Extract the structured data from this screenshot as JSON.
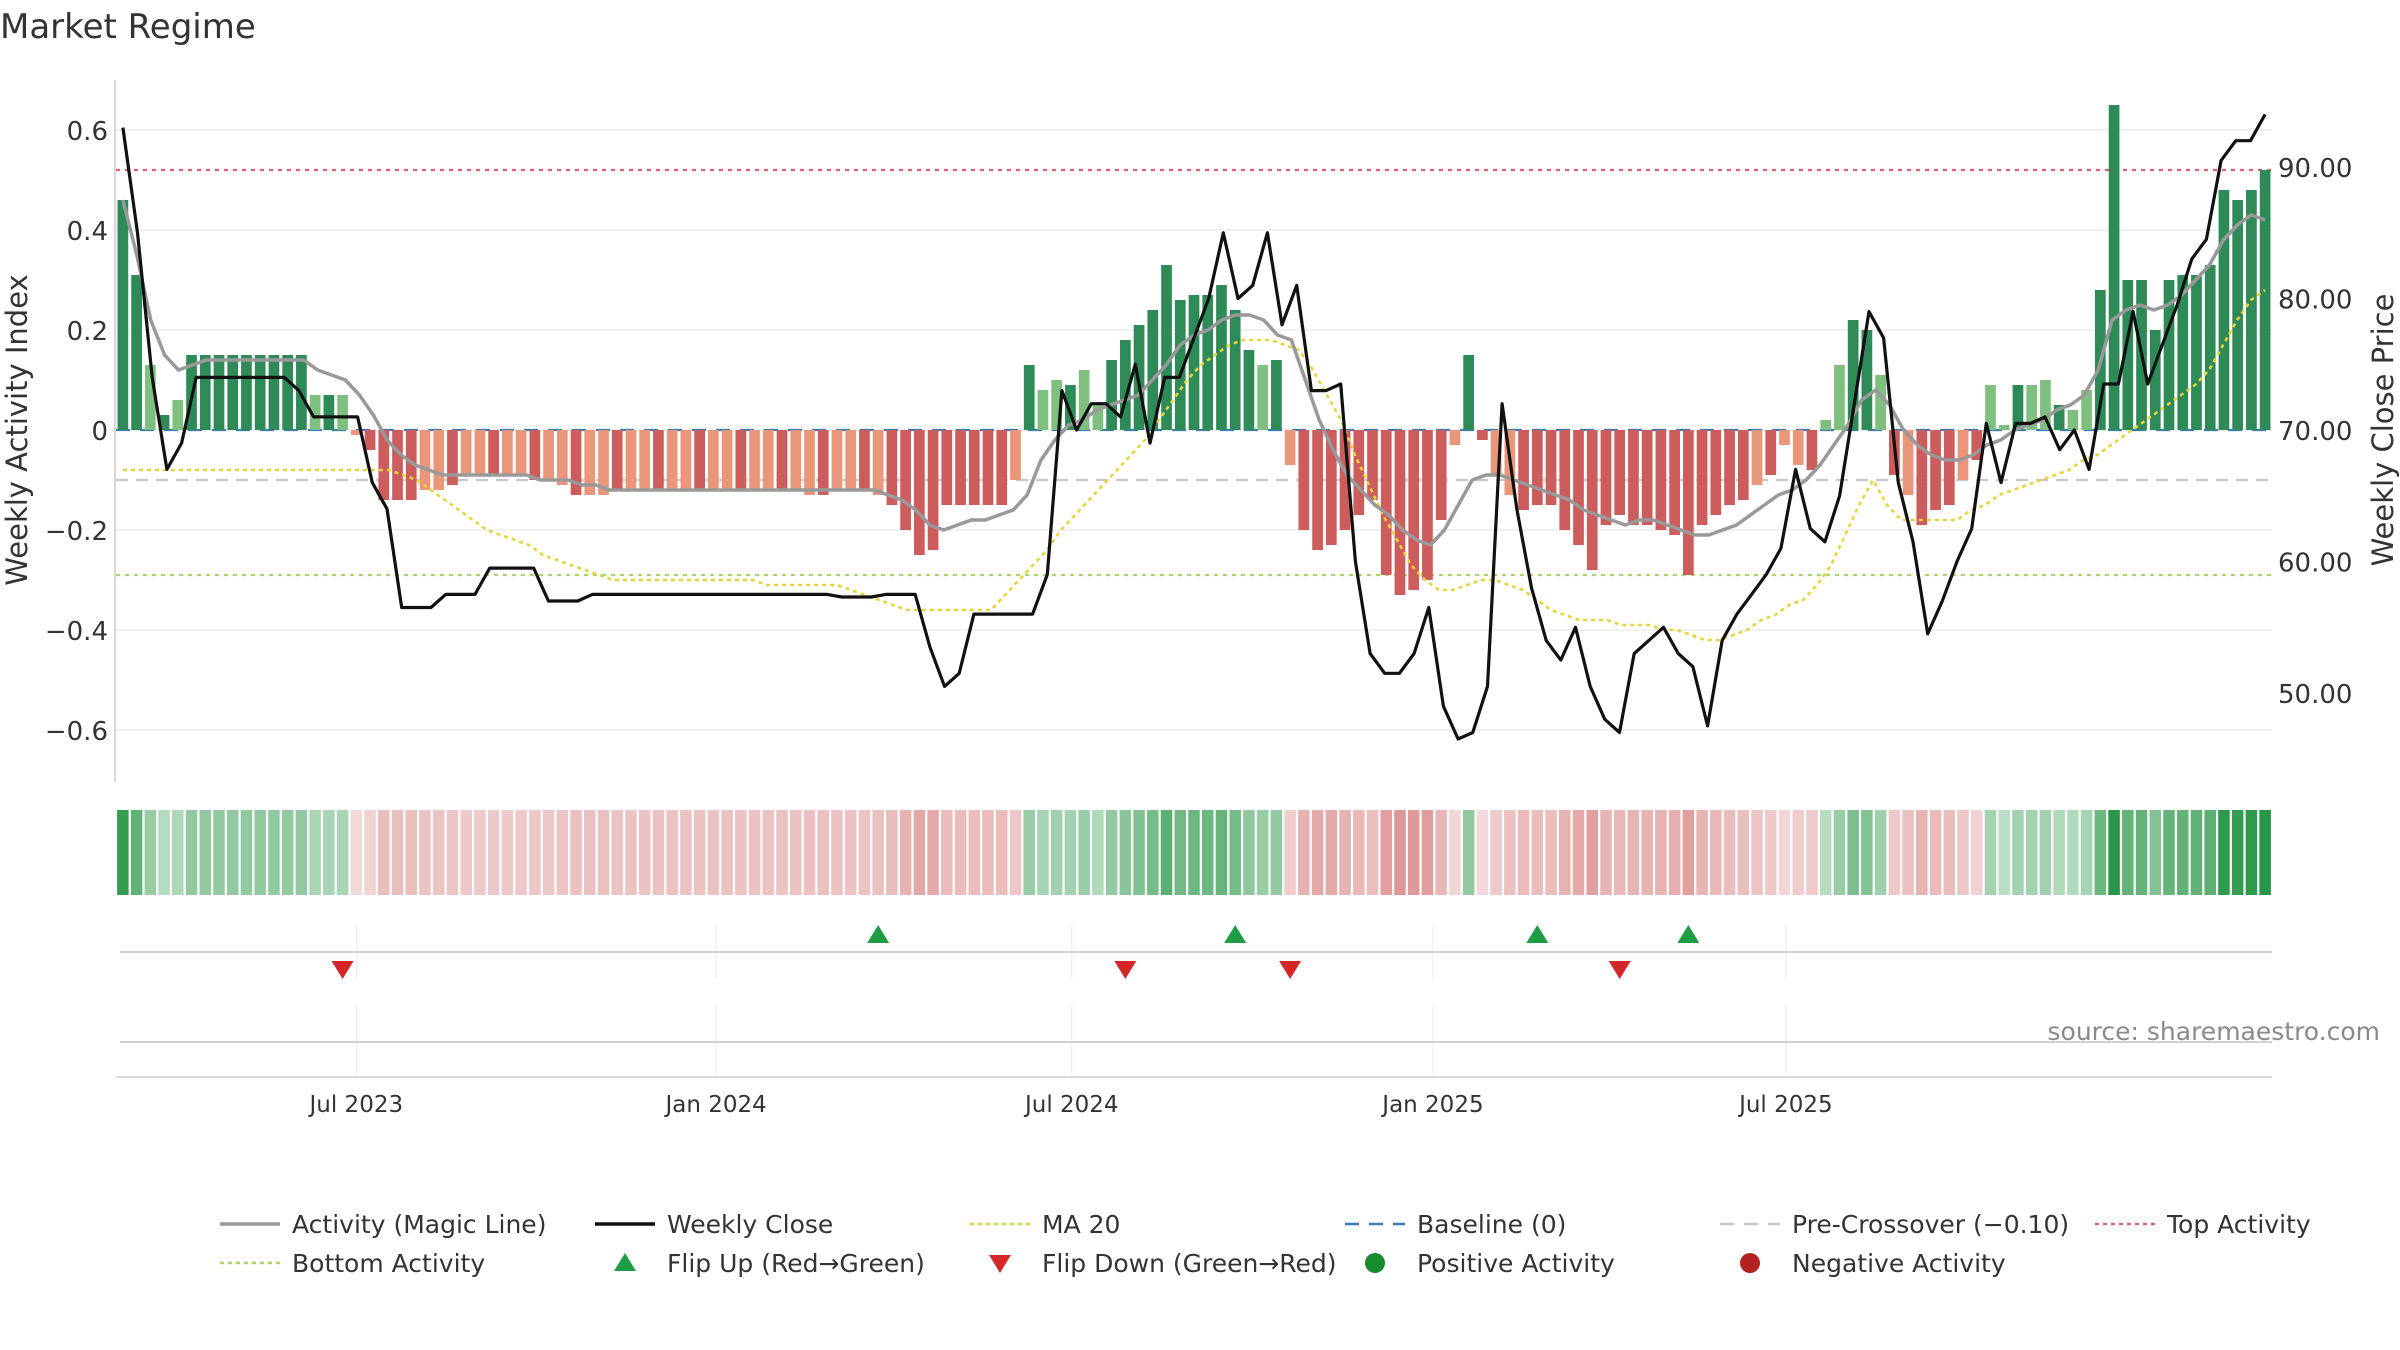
{
  "chart_data": {
    "type": "bar",
    "title": "Market Regime",
    "ylabel_left": "Weekly Activity Index",
    "ylabel_right": "Weekly Close Price",
    "source": "source: sharemaestro.com",
    "ylim_left": [
      -0.7,
      0.7
    ],
    "yticks_left": [
      -0.6,
      -0.4,
      -0.2,
      0,
      0.2,
      0.4,
      0.6
    ],
    "ytick_labels_left": [
      "−0.6",
      "−0.4",
      "−0.2",
      "0",
      "0.2",
      "0.4",
      "0.6"
    ],
    "ylim_right": [
      43.6,
      97.6
    ],
    "yticks_right": [
      50,
      60,
      70,
      80,
      90
    ],
    "ytick_labels_right": [
      "50.00",
      "60.00",
      "70.00",
      "80.00",
      "90.00"
    ],
    "x_ticks": [
      {
        "label": "Jul 2023",
        "index": 17.5
      },
      {
        "label": "Jan 2024",
        "index": 43.7
      },
      {
        "label": "Jul 2024",
        "index": 69.6
      },
      {
        "label": "Jan 2025",
        "index": 95.9
      },
      {
        "label": "Jul 2025",
        "index": 121.6
      }
    ],
    "top_activity": 0.52,
    "bottom_activity": -0.29,
    "pre_crossover": -0.1,
    "baseline": 0,
    "weeks": 135,
    "activity": [
      0.46,
      0.31,
      0.13,
      0.03,
      0.06,
      0.15,
      0.15,
      0.15,
      0.15,
      0.15,
      0.15,
      0.15,
      0.15,
      0.15,
      0.07,
      0.07,
      0.07,
      -0.01,
      -0.04,
      -0.14,
      -0.14,
      -0.14,
      -0.12,
      -0.12,
      -0.11,
      -0.09,
      -0.09,
      -0.09,
      -0.09,
      -0.09,
      -0.1,
      -0.1,
      -0.11,
      -0.13,
      -0.13,
      -0.13,
      -0.12,
      -0.12,
      -0.12,
      -0.12,
      -0.12,
      -0.12,
      -0.12,
      -0.12,
      -0.12,
      -0.12,
      -0.12,
      -0.12,
      -0.12,
      -0.12,
      -0.13,
      -0.13,
      -0.12,
      -0.12,
      -0.12,
      -0.13,
      -0.15,
      -0.2,
      -0.25,
      -0.24,
      -0.15,
      -0.15,
      -0.15,
      -0.15,
      -0.15,
      -0.1,
      0.13,
      0.08,
      0.1,
      0.09,
      0.12,
      0.05,
      0.14,
      0.18,
      0.21,
      0.24,
      0.33,
      0.26,
      0.27,
      0.27,
      0.29,
      0.24,
      0.16,
      0.13,
      0.14,
      -0.07,
      -0.2,
      -0.24,
      -0.23,
      -0.2,
      -0.17,
      -0.14,
      -0.29,
      -0.33,
      -0.32,
      -0.3,
      -0.18,
      -0.03,
      0.15,
      -0.02,
      -0.09,
      -0.13,
      -0.16,
      -0.15,
      -0.15,
      -0.2,
      -0.23,
      -0.28,
      -0.19,
      -0.17,
      -0.19,
      -0.19,
      -0.2,
      -0.21,
      -0.29,
      -0.19,
      -0.17,
      -0.15,
      -0.14,
      -0.11,
      -0.09,
      -0.03,
      -0.07,
      -0.08,
      0.02,
      0.13,
      0.22,
      0.2,
      0.11,
      -0.09,
      -0.13,
      -0.19,
      -0.16,
      -0.15,
      -0.1
    ],
    "activity_tail": [
      -0.06,
      0.09,
      0.01,
      0.09,
      0.09,
      0.1,
      0.05,
      0.04,
      0.08,
      0.28,
      0.65,
      0.3,
      0.3,
      0.2,
      0.3,
      0.31,
      0.31,
      0.33,
      0.48,
      0.46,
      0.48,
      0.52
    ],
    "close_price": [
      93.0,
      85.0,
      74.0,
      67.0,
      69.0,
      74.0,
      74.0,
      74.0,
      74.0,
      74.0,
      74.0,
      74.0,
      73.0,
      71.0,
      71.0,
      71.0,
      71.0,
      66.0,
      64.0,
      56.5,
      56.5,
      56.5,
      57.5,
      57.5,
      57.5,
      59.5,
      59.5,
      59.5,
      59.5,
      57.0,
      57.0,
      57.0,
      57.5,
      57.5,
      57.5,
      57.5,
      57.5,
      57.5,
      57.5,
      57.5,
      57.5,
      57.5,
      57.5,
      57.5,
      57.5,
      57.5,
      57.5,
      57.5,
      57.5,
      57.3,
      57.3,
      57.3,
      57.5,
      57.5,
      57.5,
      53.5,
      50.5,
      51.5,
      56.0,
      56.0,
      56.0,
      56.0,
      56.0,
      59.0,
      73.0,
      70.0,
      72.0,
      72.0,
      71.0,
      75.0,
      69.0,
      74.0,
      74.0,
      77.0,
      80.0,
      85.0,
      80.0,
      81.0,
      85.0,
      78.0,
      81.0,
      73.0,
      73.0,
      73.5,
      60.0,
      53.0,
      51.5,
      51.5,
      53.0,
      56.5,
      49.0,
      46.5,
      47.0,
      50.5,
      72.0,
      64.0,
      58.0,
      54.0,
      52.5,
      55.0,
      50.5,
      48.0,
      47.0,
      53.0,
      54.0,
      55.0,
      53.0,
      52.0,
      47.5,
      54.0,
      56.0,
      57.5,
      59.0,
      61.0,
      67.0,
      62.5,
      61.5,
      65.0,
      72.0,
      79.0,
      77.0,
      66.0,
      61.5,
      54.5,
      57.0,
      60.0,
      62.5,
      70.5,
      66.0,
      70.5,
      70.5,
      71.0,
      68.5,
      70.0,
      67.0,
      73.5,
      73.5,
      79.0,
      73.5,
      76.5,
      79.5,
      83.0,
      84.5,
      90.5,
      92.0,
      92.0,
      94.0
    ],
    "magic_line": [
      0.46,
      0.35,
      0.22,
      0.15,
      0.12,
      0.13,
      0.14,
      0.14,
      0.14,
      0.14,
      0.14,
      0.14,
      0.14,
      0.14,
      0.12,
      0.11,
      0.1,
      0.07,
      0.03,
      -0.02,
      -0.05,
      -0.07,
      -0.08,
      -0.09,
      -0.09,
      -0.09,
      -0.09,
      -0.09,
      -0.09,
      -0.09,
      -0.1,
      -0.1,
      -0.1,
      -0.11,
      -0.11,
      -0.12,
      -0.12,
      -0.12,
      -0.12,
      -0.12,
      -0.12,
      -0.12,
      -0.12,
      -0.12,
      -0.12,
      -0.12,
      -0.12,
      -0.12,
      -0.12,
      -0.12,
      -0.12,
      -0.12,
      -0.12,
      -0.12,
      -0.12,
      -0.13,
      -0.14,
      -0.16,
      -0.19,
      -0.2,
      -0.19,
      -0.18,
      -0.18,
      -0.17,
      -0.16,
      -0.13,
      -0.06,
      -0.02,
      0.01,
      0.02,
      0.04,
      0.05,
      0.06,
      0.07,
      0.1,
      0.13,
      0.17,
      0.19,
      0.2,
      0.22,
      0.23,
      0.23,
      0.22,
      0.19,
      0.18,
      0.1,
      0.02,
      -0.04,
      -0.09,
      -0.12,
      -0.15,
      -0.17,
      -0.2,
      -0.22,
      -0.23,
      -0.2,
      -0.15,
      -0.1,
      -0.09,
      -0.09,
      -0.1,
      -0.11,
      -0.12,
      -0.13,
      -0.14,
      -0.16,
      -0.17,
      -0.18,
      -0.19,
      -0.18,
      -0.18,
      -0.19,
      -0.2,
      -0.21,
      -0.21,
      -0.2,
      -0.19,
      -0.17,
      -0.15,
      -0.13,
      -0.12,
      -0.1,
      -0.07,
      -0.03,
      0.01,
      0.06,
      0.08,
      0.05,
      0.0,
      -0.03,
      -0.05,
      -0.06,
      -0.06,
      -0.05,
      -0.03,
      -0.02,
      0.0,
      0.01,
      0.02,
      0.04,
      0.05,
      0.07,
      0.12,
      0.22,
      0.24,
      0.25,
      0.24,
      0.25,
      0.27,
      0.3,
      0.33,
      0.38,
      0.41,
      0.43,
      0.42
    ],
    "ma20": [
      -0.08,
      -0.08,
      -0.08,
      -0.08,
      -0.08,
      -0.08,
      -0.08,
      -0.08,
      -0.08,
      -0.08,
      -0.08,
      -0.08,
      -0.08,
      -0.08,
      -0.08,
      -0.08,
      -0.08,
      -0.08,
      -0.08,
      -0.08,
      -0.09,
      -0.1,
      -0.12,
      -0.14,
      -0.16,
      -0.18,
      -0.2,
      -0.21,
      -0.22,
      -0.23,
      -0.25,
      -0.26,
      -0.27,
      -0.28,
      -0.29,
      -0.3,
      -0.3,
      -0.3,
      -0.3,
      -0.3,
      -0.3,
      -0.3,
      -0.3,
      -0.3,
      -0.3,
      -0.3,
      -0.31,
      -0.31,
      -0.31,
      -0.31,
      -0.31,
      -0.31,
      -0.32,
      -0.33,
      -0.34,
      -0.35,
      -0.36,
      -0.36,
      -0.36,
      -0.36,
      -0.36,
      -0.36,
      -0.36,
      -0.33,
      -0.3,
      -0.27,
      -0.24,
      -0.2,
      -0.17,
      -0.14,
      -0.11,
      -0.08,
      -0.05,
      -0.02,
      0.02,
      0.06,
      0.1,
      0.13,
      0.15,
      0.17,
      0.18,
      0.18,
      0.18,
      0.17,
      0.16,
      0.12,
      0.07,
      0.02,
      -0.05,
      -0.11,
      -0.17,
      -0.22,
      -0.27,
      -0.3,
      -0.32,
      -0.32,
      -0.31,
      -0.3,
      -0.3,
      -0.31,
      -0.32,
      -0.34,
      -0.36,
      -0.37,
      -0.38,
      -0.38,
      -0.38,
      -0.39,
      -0.39,
      -0.39,
      -0.4,
      -0.4,
      -0.41,
      -0.42,
      -0.42,
      -0.41,
      -0.4,
      -0.38,
      -0.37,
      -0.35,
      -0.34,
      -0.31,
      -0.27,
      -0.21,
      -0.15,
      -0.1,
      -0.15,
      -0.18,
      -0.18,
      -0.18,
      -0.18,
      -0.18,
      -0.16,
      -0.15,
      -0.13,
      -0.12,
      -0.11,
      -0.1,
      -0.09,
      -0.08,
      -0.06,
      -0.05,
      -0.03,
      -0.01,
      0.01,
      0.03,
      0.05,
      0.07,
      0.09,
      0.12,
      0.17,
      0.22,
      0.26,
      0.28
    ],
    "flips_up": [
      55,
      81,
      103,
      114
    ],
    "flips_down": [
      16,
      73,
      85,
      109
    ],
    "legend": [
      {
        "label": "Activity (Magic Line)",
        "kind": "line",
        "color": "#999999"
      },
      {
        "label": "Weekly Close",
        "kind": "line",
        "color": "#111111"
      },
      {
        "label": "MA 20",
        "kind": "dotted",
        "color": "#e8d33a"
      },
      {
        "label": "Baseline (0)",
        "kind": "dashed",
        "color": "#3a7ab8"
      },
      {
        "label": "Pre-Crossover (−0.10)",
        "kind": "dashed",
        "color": "#c8c8c8"
      },
      {
        "label": "Top Activity",
        "kind": "dotted",
        "color": "#e06070"
      },
      {
        "label": "Bottom Activity",
        "kind": "dotted",
        "color": "#a8d86a"
      },
      {
        "label": "Flip Up (Red→Green)",
        "kind": "tri-up",
        "color": "#1f9d45"
      },
      {
        "label": "Flip Down (Green→Red)",
        "kind": "tri-down",
        "color": "#d62728"
      },
      {
        "label": "Positive Activity",
        "kind": "dot",
        "color": "#1a8a2e"
      },
      {
        "label": "Negative Activity",
        "kind": "dot",
        "color": "#b22222"
      }
    ],
    "colors": {
      "green_dark": "#2e8b57",
      "green_light": "#7fbf7f",
      "red_dark": "#cd5c5c",
      "red_light": "#e9967a",
      "grid": "#e8e8e8",
      "axis": "#cccccc"
    }
  }
}
